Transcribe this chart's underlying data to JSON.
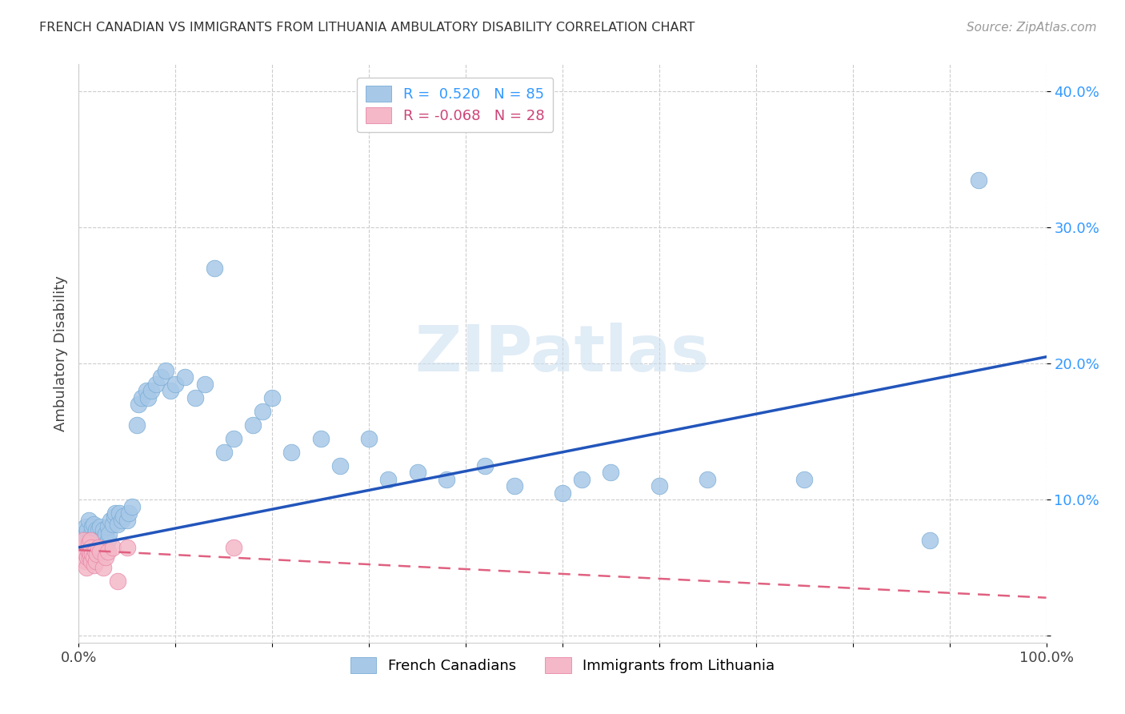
{
  "title": "FRENCH CANADIAN VS IMMIGRANTS FROM LITHUANIA AMBULATORY DISABILITY CORRELATION CHART",
  "source": "Source: ZipAtlas.com",
  "ylabel": "Ambulatory Disability",
  "watermark": "ZIPatlas",
  "blue_R": 0.52,
  "blue_N": 85,
  "pink_R": -0.068,
  "pink_N": 28,
  "blue_color": "#a8c8e8",
  "blue_edge": "#7aadd4",
  "pink_color": "#f4b8c8",
  "pink_edge": "#e888a8",
  "trend_blue": "#2255bb",
  "trend_pink": "#e06080",
  "xmin": 0.0,
  "xmax": 1.0,
  "ymin": -0.005,
  "ymax": 0.42,
  "yticks": [
    0.0,
    0.1,
    0.2,
    0.3,
    0.4
  ],
  "ytick_labels": [
    "",
    "10.0%",
    "20.0%",
    "30.0%",
    "40.0%"
  ],
  "xticks": [
    0.0,
    0.1,
    0.2,
    0.3,
    0.4,
    0.5,
    0.6,
    0.7,
    0.8,
    0.9,
    1.0
  ],
  "xtick_labels": [
    "0.0%",
    "",
    "",
    "",
    "",
    "",
    "",
    "",
    "",
    "",
    "100.0%"
  ],
  "grid_color": "#cccccc",
  "legend_labels": [
    "French Canadians",
    "Immigrants from Lithuania"
  ],
  "blue_scatter_x": [
    0.005,
    0.007,
    0.008,
    0.009,
    0.01,
    0.01,
    0.01,
    0.012,
    0.012,
    0.013,
    0.013,
    0.014,
    0.014,
    0.015,
    0.015,
    0.015,
    0.016,
    0.017,
    0.018,
    0.018,
    0.019,
    0.02,
    0.02,
    0.02,
    0.021,
    0.022,
    0.022,
    0.023,
    0.024,
    0.025,
    0.025,
    0.026,
    0.027,
    0.028,
    0.03,
    0.03,
    0.031,
    0.033,
    0.035,
    0.037,
    0.038,
    0.04,
    0.042,
    0.044,
    0.046,
    0.05,
    0.052,
    0.055,
    0.06,
    0.062,
    0.065,
    0.07,
    0.072,
    0.075,
    0.08,
    0.085,
    0.09,
    0.095,
    0.1,
    0.11,
    0.12,
    0.13,
    0.14,
    0.15,
    0.16,
    0.18,
    0.19,
    0.2,
    0.22,
    0.25,
    0.27,
    0.3,
    0.32,
    0.35,
    0.38,
    0.42,
    0.45,
    0.5,
    0.52,
    0.55,
    0.6,
    0.65,
    0.75,
    0.88,
    0.93
  ],
  "blue_scatter_y": [
    0.075,
    0.08,
    0.072,
    0.078,
    0.065,
    0.07,
    0.085,
    0.068,
    0.072,
    0.06,
    0.075,
    0.065,
    0.08,
    0.058,
    0.07,
    0.082,
    0.062,
    0.075,
    0.065,
    0.078,
    0.07,
    0.06,
    0.068,
    0.078,
    0.065,
    0.07,
    0.08,
    0.065,
    0.072,
    0.068,
    0.078,
    0.072,
    0.065,
    0.075,
    0.07,
    0.08,
    0.075,
    0.085,
    0.082,
    0.088,
    0.09,
    0.082,
    0.09,
    0.085,
    0.088,
    0.085,
    0.09,
    0.095,
    0.155,
    0.17,
    0.175,
    0.18,
    0.175,
    0.18,
    0.185,
    0.19,
    0.195,
    0.18,
    0.185,
    0.19,
    0.175,
    0.185,
    0.27,
    0.135,
    0.145,
    0.155,
    0.165,
    0.175,
    0.135,
    0.145,
    0.125,
    0.145,
    0.115,
    0.12,
    0.115,
    0.125,
    0.11,
    0.105,
    0.115,
    0.12,
    0.11,
    0.115,
    0.115,
    0.07,
    0.335
  ],
  "pink_scatter_x": [
    0.003,
    0.005,
    0.006,
    0.007,
    0.008,
    0.009,
    0.01,
    0.01,
    0.011,
    0.012,
    0.012,
    0.013,
    0.013,
    0.014,
    0.015,
    0.016,
    0.017,
    0.018,
    0.019,
    0.02,
    0.022,
    0.025,
    0.028,
    0.03,
    0.035,
    0.04,
    0.05,
    0.16
  ],
  "pink_scatter_y": [
    0.065,
    0.07,
    0.055,
    0.06,
    0.05,
    0.058,
    0.062,
    0.068,
    0.058,
    0.06,
    0.07,
    0.055,
    0.065,
    0.06,
    0.058,
    0.052,
    0.062,
    0.055,
    0.06,
    0.065,
    0.062,
    0.05,
    0.058,
    0.062,
    0.065,
    0.04,
    0.065,
    0.065
  ],
  "blue_trend_x0": 0.0,
  "blue_trend_x1": 1.0,
  "blue_trend_y0": 0.065,
  "blue_trend_y1": 0.205,
  "pink_trend_x0": 0.0,
  "pink_trend_x1": 1.0,
  "pink_trend_y0": 0.063,
  "pink_trend_y1": 0.028
}
